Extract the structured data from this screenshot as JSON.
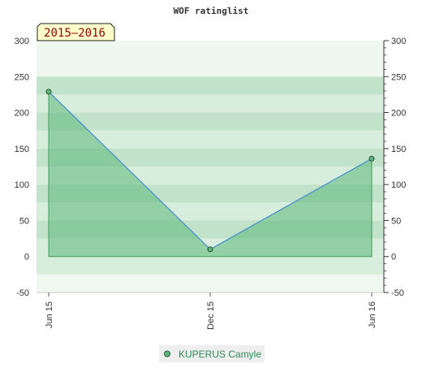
{
  "chart_data": {
    "type": "area",
    "title": "WOF ratinglist",
    "season_label": "2015–2016",
    "categories": [
      "Jun 15",
      "Dec 15",
      "Jun 16"
    ],
    "x": [
      "Jun 15",
      "Dec 15",
      "Jun 16"
    ],
    "series": [
      {
        "name": "KUPERUS Camyle",
        "values": [
          229,
          10,
          136
        ]
      }
    ],
    "ylim": [
      -50,
      300
    ],
    "yticks": [
      -50,
      0,
      50,
      100,
      150,
      200,
      250,
      300
    ],
    "xlabel": "",
    "ylabel": "",
    "grid": "horizontal-bands",
    "legend": "bottom",
    "colors": {
      "line": "#4a90d9",
      "area_fill": "#5cb878",
      "area_stroke": "#3f9a5a",
      "marker_fill": "#5cb878",
      "band_light": "#eef7f0",
      "band_mid": "#d8eedd",
      "band_dark": "#c2e3ca",
      "season_bg": "#ffffcc"
    }
  }
}
